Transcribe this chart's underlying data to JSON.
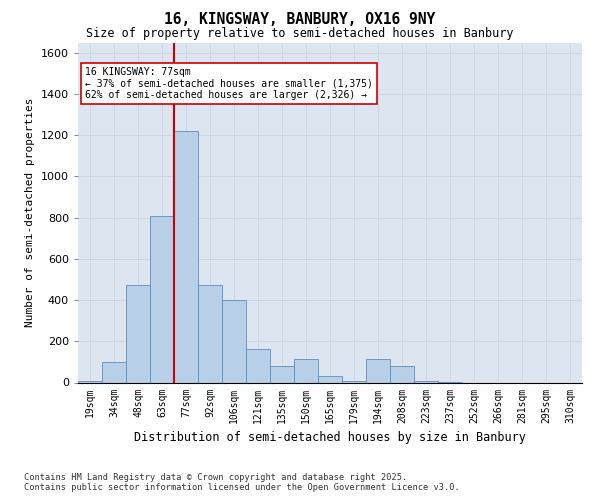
{
  "title": "16, KINGSWAY, BANBURY, OX16 9NY",
  "subtitle": "Size of property relative to semi-detached houses in Banbury",
  "xlabel": "Distribution of semi-detached houses by size in Banbury",
  "ylabel": "Number of semi-detached properties",
  "property_label": "16 KINGSWAY: 77sqm",
  "pct_smaller": "37% of semi-detached houses are smaller (1,375)",
  "pct_larger": "62% of semi-detached houses are larger (2,326)",
  "property_size_idx": 4,
  "bin_labels": [
    "19sqm",
    "34sqm",
    "48sqm",
    "63sqm",
    "77sqm",
    "92sqm",
    "106sqm",
    "121sqm",
    "135sqm",
    "150sqm",
    "165sqm",
    "179sqm",
    "194sqm",
    "208sqm",
    "223sqm",
    "237sqm",
    "252sqm",
    "266sqm",
    "281sqm",
    "295sqm",
    "310sqm"
  ],
  "counts": [
    5,
    100,
    475,
    810,
    1220,
    475,
    400,
    165,
    80,
    115,
    30,
    5,
    115,
    80,
    5,
    3,
    0,
    0,
    0,
    0,
    0
  ],
  "bar_color": "#b8cfe8",
  "bar_edge_color": "#5a8fc0",
  "red_line_color": "#cc0000",
  "grid_color": "#c8d0dc",
  "bg_color": "#dde5f0",
  "annotation_box_color": "#cc0000",
  "footer_text": "Contains HM Land Registry data © Crown copyright and database right 2025.\nContains public sector information licensed under the Open Government Licence v3.0.",
  "ylim": [
    0,
    1650
  ],
  "yticks": [
    0,
    200,
    400,
    600,
    800,
    1000,
    1200,
    1400,
    1600
  ]
}
